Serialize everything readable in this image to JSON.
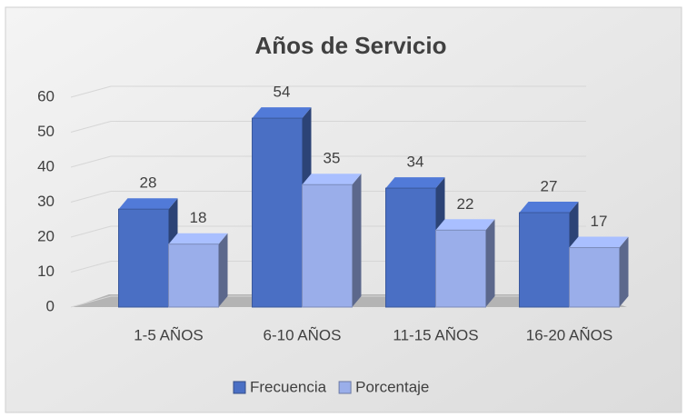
{
  "chart_data": {
    "type": "bar3d",
    "title": "Años de Servicio",
    "categories": [
      "1-5 AÑOS",
      "6-10 AÑOS",
      "11-15 AÑOS",
      "16-20 AÑOS"
    ],
    "series": [
      {
        "name": "Frecuencia",
        "color": "#4a6fc4",
        "values": [
          28,
          54,
          34,
          27
        ]
      },
      {
        "name": "Porcentaje",
        "color": "#9aaeea",
        "values": [
          18,
          35,
          22,
          17
        ]
      }
    ],
    "ylim": [
      0,
      60
    ],
    "yticks": [
      0,
      10,
      20,
      30,
      40,
      50,
      60
    ],
    "grid": true,
    "legend": "bottom"
  }
}
